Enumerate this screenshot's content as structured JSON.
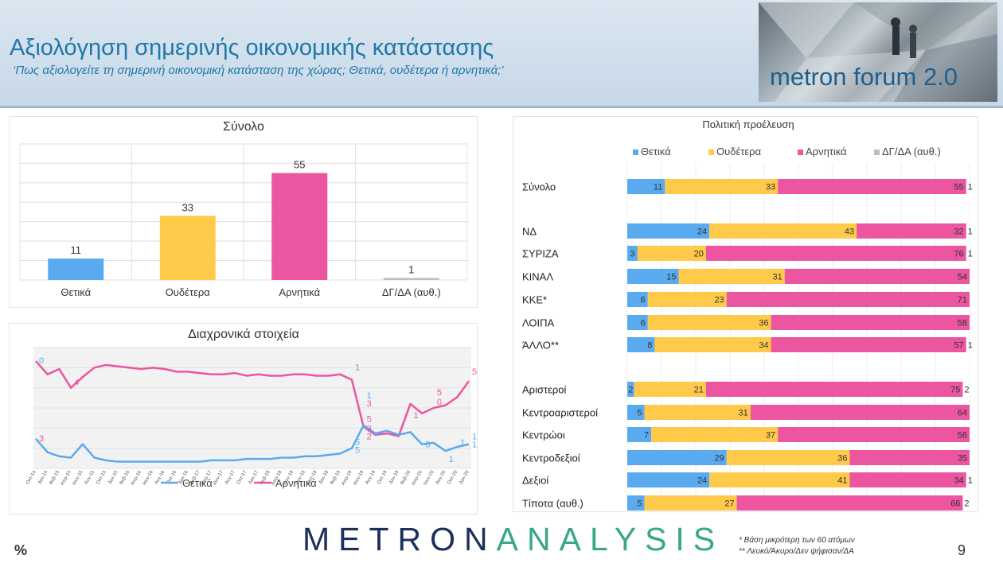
{
  "header": {
    "title": "Αξιολόγηση σημερινής οικονομικής κατάστασης",
    "subtitle": "‘Πως αξιολογείτε τη σημερινή οικονομική κατάσταση της χώρας; Θετικά, ουδέτερα ή αρνητικά;’",
    "logo_text": "metron forum 2.0"
  },
  "colors": {
    "positive": "#5aaaf0",
    "neutral": "#ffc94a",
    "negative": "#ec559f",
    "dk": "#bfbfbf",
    "header_text": "#1f78a8"
  },
  "chart_data": [
    {
      "type": "bar",
      "title": "Σύνολο",
      "categories": [
        "Θετικά",
        "Ουδέτερα",
        "Αρνητικά",
        "ΔΓ/ΔΑ (αυθ.)"
      ],
      "values": [
        11,
        33,
        55,
        1
      ],
      "ylim": [
        0,
        70
      ]
    },
    {
      "type": "line",
      "title": "Διαχρονικά στοιχεία",
      "x": [
        "Οκτ-14",
        "Δεκ-14",
        "Φεβ-15",
        "Απρ-15",
        "Ιουν-15",
        "Αυγ-15",
        "Οκτ-15",
        "Δεκ-15",
        "Φεβ-16",
        "Απρ-16",
        "Ιουν-16",
        "Αυγ-16",
        "Οκτ-16",
        "Δεκ-16",
        "Φεβ-17",
        "Απρ-17",
        "Ιουν-17",
        "Αυγ-17",
        "Οκτ-17",
        "Δεκ-17",
        "Φεβ-18",
        "Απρ-18",
        "Ιουν-18",
        "Αυγ-18",
        "Οκτ-18",
        "Δεκ-18",
        "Φεβ-19",
        "Απρ-19",
        "Ιουν-19",
        "Αυγ-19",
        "Οκτ-19",
        "Δεκ-19",
        "Φεβ-20",
        "Απρ-20",
        "Ιουν-20",
        "Αυγ-20",
        "Οκτ-20",
        "Δεκ-20"
      ],
      "series": [
        {
          "name": "Θετικά",
          "values": [
            22,
            12,
            9,
            8,
            18,
            8,
            6,
            5,
            5,
            5,
            5,
            5,
            5,
            5,
            5,
            6,
            6,
            6,
            7,
            7,
            7,
            8,
            8,
            9,
            9,
            10,
            11,
            15,
            32,
            26,
            28,
            25,
            27,
            18,
            19,
            13,
            16,
            18
          ]
        },
        {
          "name": "Αρνητικά",
          "values": [
            80,
            70,
            74,
            60,
            68,
            75,
            77,
            76,
            75,
            74,
            75,
            74,
            72,
            72,
            71,
            70,
            70,
            71,
            69,
            70,
            69,
            69,
            70,
            70,
            69,
            69,
            70,
            66,
            31,
            25,
            26,
            24,
            48,
            41,
            45,
            47,
            53,
            65
          ]
        }
      ],
      "point_labels": [
        "0",
        "3",
        "4",
        "1",
        "5",
        "3",
        "3",
        "2",
        "1",
        "5",
        "1",
        "8",
        "1",
        "1",
        "5",
        "0",
        "5",
        "5",
        "1",
        "1"
      ],
      "ylim": [
        0,
        90
      ]
    },
    {
      "type": "bar",
      "orientation": "horizontal",
      "stacked": true,
      "title": "Πολιτική προέλευση",
      "legend": [
        "Θετικά",
        "Ουδέτερα",
        "Αρνητικά",
        "ΔΓ/ΔΑ (αυθ.)"
      ],
      "rows": [
        {
          "label": "Σύνολο",
          "values": [
            11,
            33,
            55,
            1
          ]
        },
        {
          "label": "ΝΔ",
          "values": [
            24,
            43,
            32,
            1
          ]
        },
        {
          "label": "ΣΥΡΙΖΑ",
          "values": [
            3,
            20,
            76,
            1
          ]
        },
        {
          "label": "ΚΙΝΑΛ",
          "values": [
            15,
            31,
            54,
            0
          ]
        },
        {
          "label": "ΚΚΕ*",
          "values": [
            6,
            23,
            71,
            0
          ]
        },
        {
          "label": "ΛΟΙΠΑ",
          "values": [
            6,
            36,
            58,
            0
          ]
        },
        {
          "label": "ΆΛΛΟ**",
          "values": [
            8,
            34,
            57,
            1
          ]
        },
        {
          "label": "Αριστεροί",
          "values": [
            2,
            21,
            75,
            2
          ]
        },
        {
          "label": "Κεντροαριστεροί",
          "values": [
            5,
            31,
            64,
            0
          ]
        },
        {
          "label": "Κεντρώοι",
          "values": [
            7,
            37,
            56,
            0
          ]
        },
        {
          "label": "Κεντροδεξιοί",
          "values": [
            29,
            36,
            35,
            0
          ]
        },
        {
          "label": "Δεξιοί",
          "values": [
            24,
            41,
            34,
            1
          ]
        },
        {
          "label": "Τίποτα (αυθ.)",
          "values": [
            5,
            27,
            66,
            2
          ]
        }
      ]
    }
  ],
  "footer": {
    "percent": "%",
    "brand_a": "METRON",
    "brand_b": "ANALYSIS",
    "note1": "*  Βάση μικρότερη των 60 ατόμων",
    "note2": "** Λευκό/Άκυρο/Δεν ψήφισαν/ΔΑ",
    "page": "9"
  }
}
